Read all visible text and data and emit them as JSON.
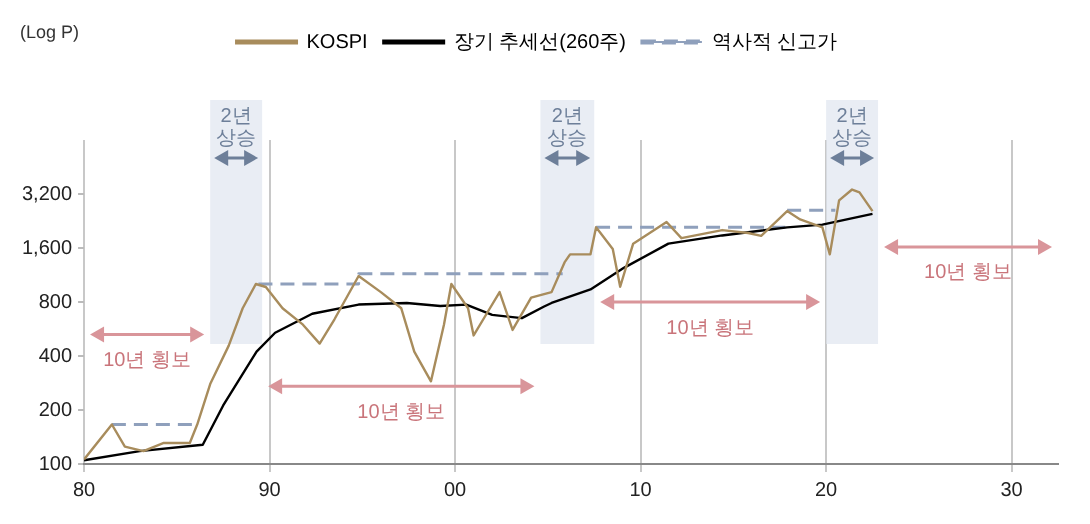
{
  "chart_data": {
    "type": "line",
    "log": "y",
    "grid": "x",
    "legend": "top",
    "marker": "none",
    "xlim": [
      1980,
      2032.5
    ],
    "xticks": [
      {
        "value": 1980,
        "label": "80"
      },
      {
        "value": 1990,
        "label": "90"
      },
      {
        "value": 2000,
        "label": "00"
      },
      {
        "value": 2010,
        "label": "10"
      },
      {
        "value": 2020,
        "label": "20"
      },
      {
        "value": 2030,
        "label": "30"
      }
    ],
    "ylim": [
      100,
      6400
    ],
    "yticks": [
      100,
      200,
      400,
      800,
      {
        "value": 1600,
        "label": "1,600"
      },
      {
        "value": 3200,
        "label": "3,200"
      }
    ],
    "series": [
      {
        "name": "KOSPI",
        "color": "#a88c5c",
        "line_style": "solid",
        "x": [
          1980,
          1981.5,
          1982.2,
          1983.2,
          1984.3,
          1985.7,
          1986.1,
          1986.8,
          1987.8,
          1988.55,
          1989.26,
          1989.8,
          1990.7,
          1991.8,
          1992.7,
          1993.5,
          1994.8,
          1996,
          1997.1,
          1997.8,
          1998.7,
          1999.4,
          1999.8,
          2000.7,
          2001,
          2001.7,
          2002.4,
          2003.1,
          2004.1,
          2005.2,
          2005.9,
          2006.2,
          2007.3,
          2007.6,
          2008.5,
          2008.9,
          2009.6,
          2011.4,
          2012.2,
          2014.4,
          2015.8,
          2016.5,
          2017.9,
          2018.6,
          2019.8,
          2020.2,
          2020.7,
          2021.4,
          2021.8,
          2022.5
        ],
        "values": [
          106,
          166,
          125,
          118,
          131,
          131,
          166,
          279,
          457,
          738,
          1008,
          970,
          738,
          598,
          469,
          641,
          1117,
          908,
          738,
          423,
          289,
          598,
          1008,
          738,
          521,
          688,
          908,
          559,
          846,
          908,
          1330,
          1475,
          1475,
          2086,
          1580,
          973,
          1692,
          2235,
          1815,
          2014,
          1940,
          1870,
          2570,
          2310,
          2086,
          1475,
          2950,
          3390,
          3270,
          2570
        ]
      },
      {
        "name": "장기 추세선(260주)",
        "color": "#000000",
        "line_style": "solid",
        "x": [
          1980,
          1983,
          1986.4,
          1987.5,
          1989.3,
          1990.3,
          1992.3,
          1994.8,
          1997.4,
          1999.2,
          2000.6,
          2002,
          2003.6,
          2004.8,
          2005.2,
          2007.3,
          2009.1,
          2011.5,
          2014.4,
          2017.9,
          2019.8,
          2022.5
        ],
        "values": [
          105,
          118,
          128,
          212,
          423,
          539,
          688,
          774,
          790,
          760,
          774,
          678,
          650,
          755,
          790,
          940,
          1240,
          1692,
          1880,
          2086,
          2160,
          2480
        ]
      },
      {
        "name": "역사적 신고가",
        "color": "#8fa0bc",
        "line_style": "dashed",
        "x": [
          1981.5,
          1986,
          1986.01,
          1989.4,
          1994.8,
          1994.81,
          2005.8,
          2005.81,
          2007.6,
          2017.8,
          2017.81,
          2017.9,
          2020.5
        ],
        "values": [
          166,
          166,
          null,
          1008,
          1008,
          1150,
          1150,
          null,
          2086,
          2086,
          null,
          2600,
          2600
        ]
      }
    ],
    "bands": [
      {
        "axis": "x",
        "from": 1986.8,
        "to": 1989.6,
        "label": "2년 상승",
        "color": "#dfe6f0"
      },
      {
        "axis": "x",
        "from": 2004.6,
        "to": 2007.5,
        "label": "2년 상승",
        "color": "#dfe6f0"
      },
      {
        "axis": "x",
        "from": 2020,
        "to": 2022.8,
        "label": "2년 상승",
        "color": "#dfe6f0"
      }
    ],
    "annotations": [
      "(Log P)",
      "10년 횡보",
      "10년 횡보",
      "10년 횡보",
      "10년 횡보"
    ]
  }
}
